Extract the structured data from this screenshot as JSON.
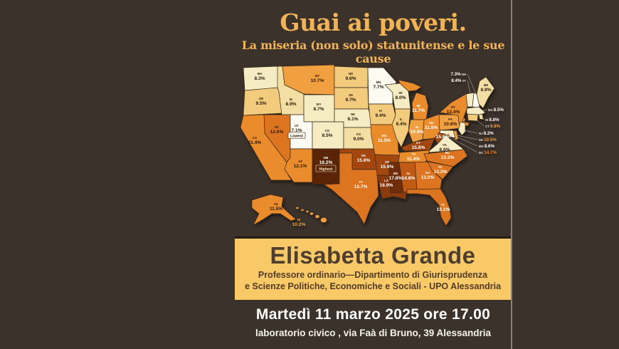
{
  "poster": {
    "title": "Guai ai poveri.",
    "subtitle": "La miseria (non solo) statunitense e le sue cause",
    "speaker": {
      "name": "Elisabetta Grande",
      "role_line1": "Professore ordinario—Dipartimento di Giurisprudenza",
      "role_line2": "e Scienze Politiche, Economiche e Sociali - UPO Alessandria"
    },
    "event": {
      "datetime": "Martedì 11 marzo  2025 ore 17.00",
      "location": "laboratorio civico , via Faà di Bruno, 39 Alessandria"
    },
    "colors": {
      "background": "#3c322c",
      "title_gold": "#f2b356",
      "box_yellow": "#f9c967",
      "box_text": "#4e3e2f",
      "white_text": "#ffffff"
    }
  },
  "chart_data": {
    "type": "choropleth",
    "region": "United States — rate by state",
    "unit": "%",
    "annotations": {
      "lowest": {
        "state": "UT",
        "label": "Lowest"
      },
      "highest": {
        "state": "NM",
        "label": "Highest"
      }
    },
    "color_scale": [
      {
        "max": 7.9,
        "color": "#fdfbf2"
      },
      {
        "max": 8.7,
        "color": "#f6ecc4"
      },
      {
        "max": 9.1,
        "color": "#f3dfa4"
      },
      {
        "max": 10.0,
        "color": "#f2cc7c"
      },
      {
        "max": 11.0,
        "color": "#f0a041"
      },
      {
        "max": 12.5,
        "color": "#ea8c2c"
      },
      {
        "max": 13.9,
        "color": "#dd7520"
      },
      {
        "max": 15.0,
        "color": "#c05a14"
      },
      {
        "max": 16.0,
        "color": "#a34710"
      },
      {
        "max": 17.0,
        "color": "#8a3a0e"
      },
      {
        "max": 18.0,
        "color": "#6f2e09"
      },
      {
        "max": 99.0,
        "color": "#5a2507"
      }
    ],
    "states": [
      {
        "abbr": "WA",
        "value": 8.3
      },
      {
        "abbr": "OR",
        "value": 9.5
      },
      {
        "abbr": "CA",
        "value": 11.4
      },
      {
        "abbr": "NV",
        "value": 12.6
      },
      {
        "abbr": "ID",
        "value": 8.9
      },
      {
        "abbr": "MT",
        "value": 10.7
      },
      {
        "abbr": "WY",
        "value": 8.7
      },
      {
        "abbr": "UT",
        "value": 7.1
      },
      {
        "abbr": "CO",
        "value": 8.5
      },
      {
        "abbr": "AZ",
        "value": 12.1
      },
      {
        "abbr": "NM",
        "value": 18.2
      },
      {
        "abbr": "ND",
        "value": 9.6
      },
      {
        "abbr": "SD",
        "value": 9.7
      },
      {
        "abbr": "NE",
        "value": 8.1
      },
      {
        "abbr": "KS",
        "value": 9.0
      },
      {
        "abbr": "OK",
        "value": 15.8
      },
      {
        "abbr": "TX",
        "value": 13.7
      },
      {
        "abbr": "MN",
        "value": 7.7
      },
      {
        "abbr": "IA",
        "value": 9.4
      },
      {
        "abbr": "MO",
        "value": 11.5
      },
      {
        "abbr": "AR",
        "value": 15.9
      },
      {
        "abbr": "LA",
        "value": 16.9
      },
      {
        "abbr": "WI",
        "value": 8.0
      },
      {
        "abbr": "IL",
        "value": 9.4
      },
      {
        "abbr": "MI",
        "value": 11.7
      },
      {
        "abbr": "IN",
        "value": 10.9
      },
      {
        "abbr": "OH",
        "value": 11.5
      },
      {
        "abbr": "KY",
        "value": 15.8
      },
      {
        "abbr": "TN",
        "value": 11.4
      },
      {
        "abbr": "WV",
        "value": 15.6
      },
      {
        "abbr": "VA",
        "value": 8.6
      },
      {
        "abbr": "NC",
        "value": 13.3
      },
      {
        "abbr": "SC",
        "value": 13.3
      },
      {
        "abbr": "GA",
        "value": 13.0
      },
      {
        "abbr": "AL",
        "value": 14.8
      },
      {
        "abbr": "MS",
        "value": 17.8
      },
      {
        "abbr": "FL",
        "value": 13.1
      },
      {
        "abbr": "PA",
        "value": 10.8
      },
      {
        "abbr": "NY",
        "value": 12.4
      },
      {
        "abbr": "ME",
        "value": 8.9
      },
      {
        "abbr": "NH",
        "value": 7.3
      },
      {
        "abbr": "VT",
        "value": 8.4
      },
      {
        "abbr": "MA",
        "value": 8.5
      },
      {
        "abbr": "RI",
        "value": 8.8
      },
      {
        "abbr": "CT",
        "value": 9.8
      },
      {
        "abbr": "NJ",
        "value": 8.2
      },
      {
        "abbr": "DE",
        "value": 10.5
      },
      {
        "abbr": "MD",
        "value": 8.6
      },
      {
        "abbr": "DC",
        "value": 14.7
      },
      {
        "abbr": "AK",
        "value": 11.5
      },
      {
        "abbr": "HI",
        "value": 10.2
      }
    ]
  }
}
